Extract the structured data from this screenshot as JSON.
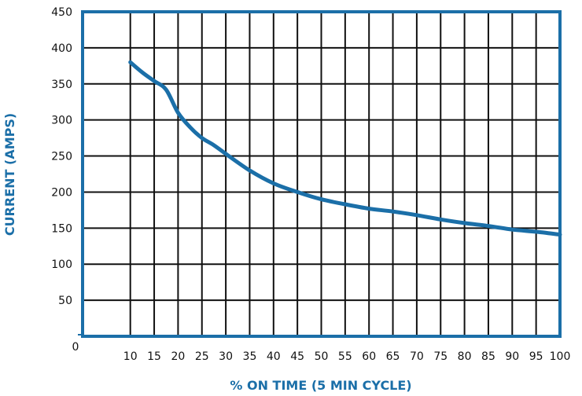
{
  "chart_data": {
    "type": "line",
    "xlabel": "% ON TIME (5 MIN CYCLE)",
    "ylabel": "CURRENT (AMPS)",
    "xlim": [
      0,
      100
    ],
    "ylim": [
      0,
      450
    ],
    "origin_label": "0",
    "x_ticks": [
      "10",
      "15",
      "20",
      "25",
      "30",
      "35",
      "40",
      "45",
      "50",
      "55",
      "60",
      "65",
      "70",
      "75",
      "80",
      "85",
      "90",
      "95",
      "100"
    ],
    "y_ticks": [
      "50",
      "100",
      "150",
      "200",
      "250",
      "300",
      "350",
      "400",
      "450"
    ],
    "grid": true,
    "colors": {
      "frame": "#1b6fa8",
      "line": "#1b6fa8",
      "grid": "#111111",
      "label": "#1b6fa8"
    },
    "series": [
      {
        "x": [
          10,
          12.5,
          15,
          17.5,
          20,
          22.5,
          25,
          27.5,
          30,
          35,
          40,
          45,
          50,
          55,
          60,
          65,
          70,
          75,
          80,
          85,
          90,
          95,
          100
        ],
        "values": [
          380,
          366,
          354,
          342,
          310,
          290,
          275,
          265,
          253,
          230,
          212,
          200,
          190,
          183,
          177,
          173,
          168,
          162,
          157,
          153,
          148,
          145,
          141
        ]
      }
    ]
  }
}
